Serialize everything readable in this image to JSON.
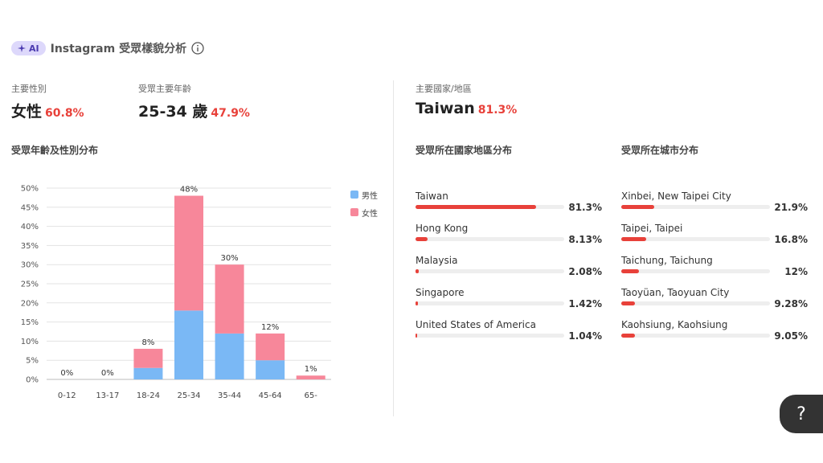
{
  "header": {
    "ai_badge": "AI",
    "title": "Instagram 受眾樣貌分析"
  },
  "stats": {
    "gender": {
      "label": "主要性別",
      "value": "女性",
      "pct": "60.8%"
    },
    "age": {
      "label": "受眾主要年齡",
      "value": "25-34 歲",
      "pct": "47.9%"
    },
    "country": {
      "label": "主要國家/地區",
      "value": "Taiwan",
      "pct": "81.3%"
    }
  },
  "sections": {
    "age_gender": "受眾年齡及性別分布",
    "country": "受眾所在國家地區分布",
    "city": "受眾所在城市分布"
  },
  "colors": {
    "male": "#7ab8f5",
    "female": "#f7879a",
    "accent": "#e8413a"
  },
  "legend": {
    "male": "男性",
    "female": "女性"
  },
  "chart_data": {
    "type": "bar",
    "stacked": true,
    "categories": [
      "0-12",
      "13-17",
      "18-24",
      "25-34",
      "35-44",
      "45-64",
      "65-"
    ],
    "series": [
      {
        "name": "男性",
        "values": [
          0,
          0,
          3,
          18,
          12,
          5,
          0
        ]
      },
      {
        "name": "女性",
        "values": [
          0,
          0,
          5,
          30,
          18,
          7,
          1
        ]
      }
    ],
    "total_labels": [
      "0%",
      "0%",
      "8%",
      "48%",
      "30%",
      "12%",
      "1%"
    ],
    "ylim": [
      0,
      50
    ],
    "yticks": [
      "0%",
      "5%",
      "10%",
      "15%",
      "20%",
      "25%",
      "30%",
      "35%",
      "40%",
      "45%",
      "50%"
    ],
    "grid": true,
    "legend_position": "right"
  },
  "countries": [
    {
      "name": "Taiwan",
      "pct": "81.3%",
      "value": 81.3
    },
    {
      "name": "Hong Kong",
      "pct": "8.13%",
      "value": 8.13
    },
    {
      "name": "Malaysia",
      "pct": "2.08%",
      "value": 2.08
    },
    {
      "name": "Singapore",
      "pct": "1.42%",
      "value": 1.42
    },
    {
      "name": "United States of America",
      "pct": "1.04%",
      "value": 1.04
    }
  ],
  "cities": [
    {
      "name": "Xinbei, New Taipei City",
      "pct": "21.9%",
      "value": 21.9
    },
    {
      "name": "Taipei, Taipei",
      "pct": "16.8%",
      "value": 16.8
    },
    {
      "name": "Taichung, Taichung",
      "pct": "12%",
      "value": 12
    },
    {
      "name": "Taoyüan, Taoyuan City",
      "pct": "9.28%",
      "value": 9.28
    },
    {
      "name": "Kaohsiung, Kaohsiung",
      "pct": "9.05%",
      "value": 9.05
    }
  ],
  "help": {
    "label": "?"
  }
}
